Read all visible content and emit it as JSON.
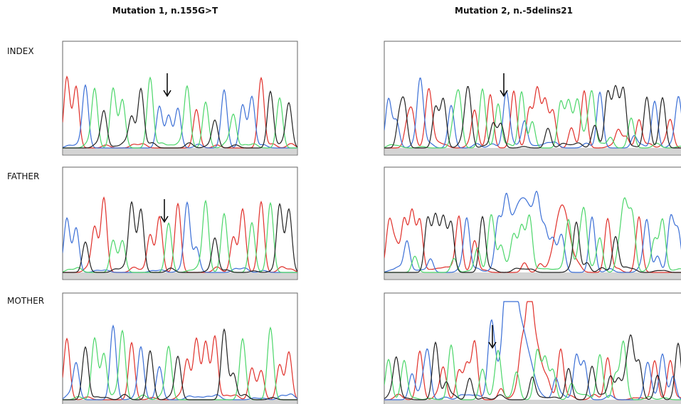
{
  "columns": [
    {
      "title": "Mutation 1, n.155G>T"
    },
    {
      "title": "Mutation 2, n.-5delins21"
    }
  ],
  "rows": [
    {
      "label": "INDEX"
    },
    {
      "label": "FATHER"
    },
    {
      "label": "MOTHER"
    }
  ]
}
